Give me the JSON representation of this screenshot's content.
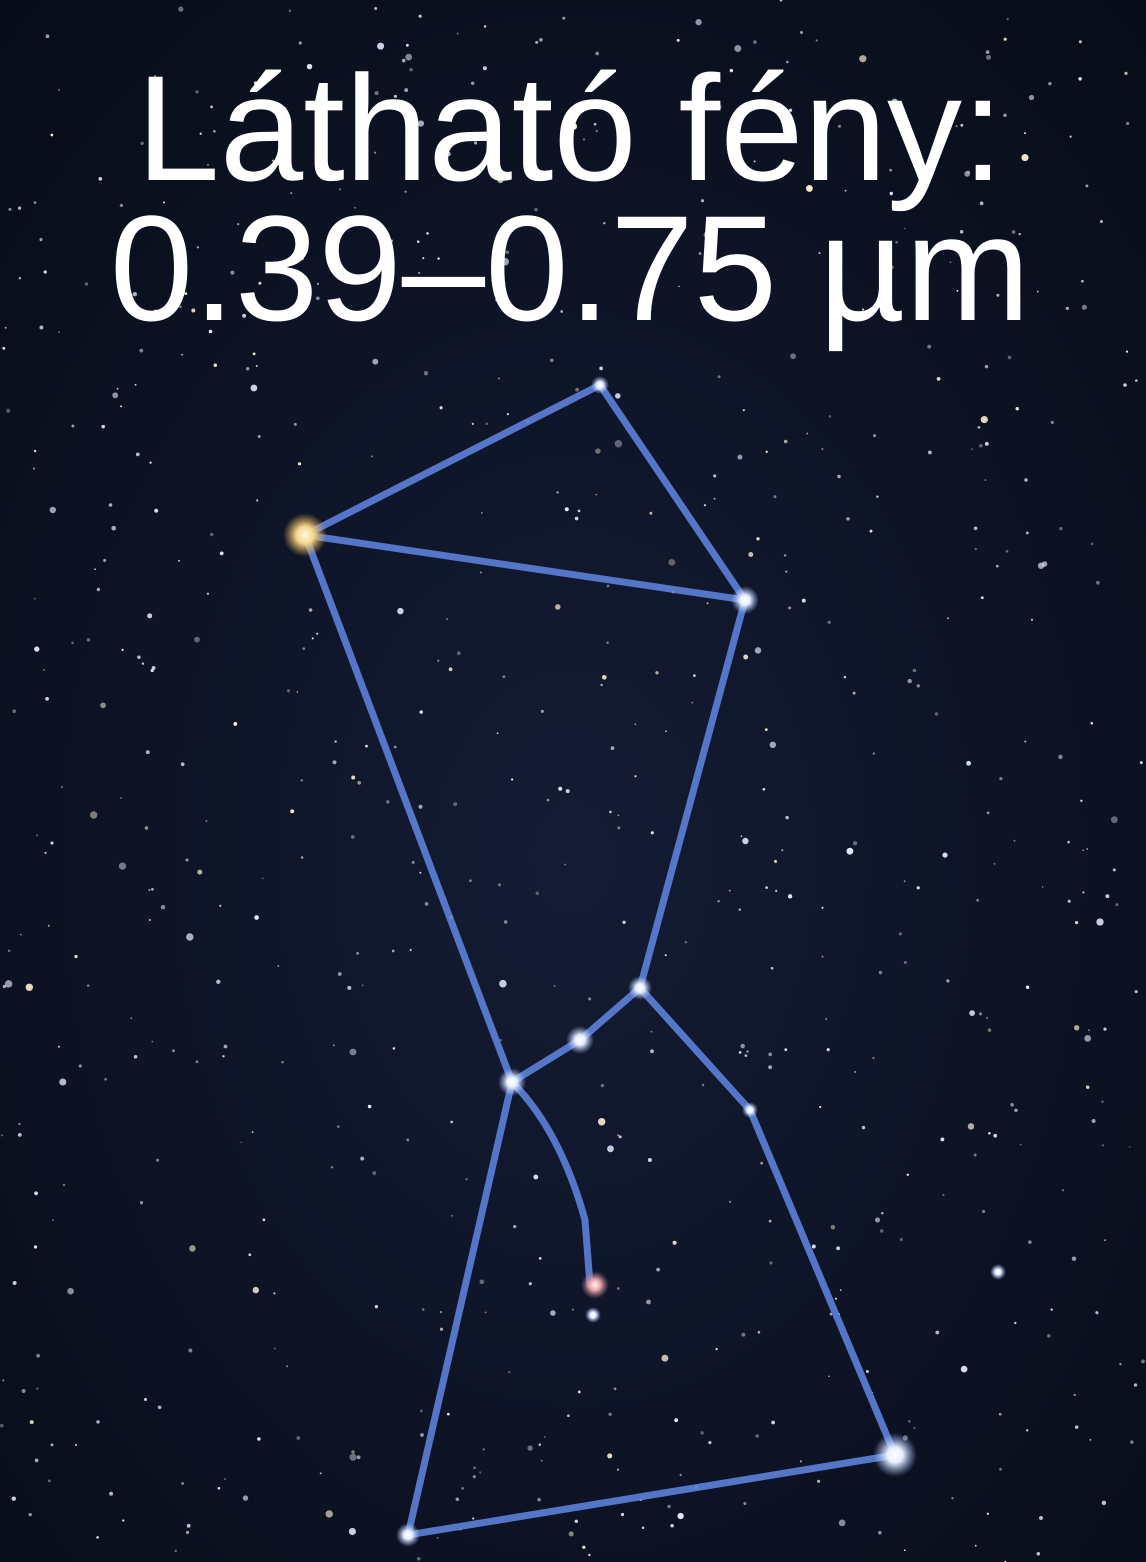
{
  "title": {
    "line1": "Látható fény:",
    "line2": "0.39–0.75 µm"
  }
}
